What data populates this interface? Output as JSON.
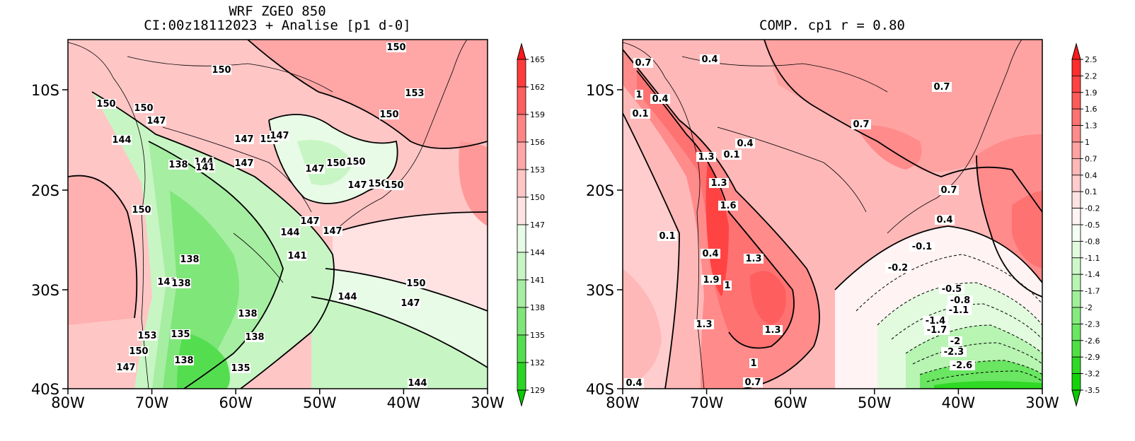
{
  "left_panel": {
    "title_line1": "WRF ZGEO 850",
    "title_line2": "CI:00z18112023 + Analise  [p1 d-0]",
    "y_ticks": [
      "10S",
      "20S",
      "30S",
      "40S"
    ],
    "x_ticks": [
      "80W",
      "70W",
      "60W",
      "50W",
      "40W",
      "30W"
    ],
    "colorbar": {
      "labels": [
        "165",
        "162",
        "159",
        "156",
        "153",
        "150",
        "147",
        "144",
        "141",
        "138",
        "135",
        "132",
        "129"
      ],
      "colors": [
        "#ff1a1a",
        "#ff3b3b",
        "#ff5e5e",
        "#ff8585",
        "#ffa6a6",
        "#ffc6c6",
        "#ffe2e2",
        "#e8fbe6",
        "#c8f5c4",
        "#a6eea1",
        "#7fe67a",
        "#55dd50",
        "#2cd425",
        "#08cc00"
      ]
    },
    "contour_labels": [
      "150",
      "150",
      "153",
      "150",
      "150",
      "147",
      "144",
      "147",
      "150",
      "147",
      "147",
      "150",
      "138",
      "144",
      "141",
      "147",
      "150",
      "147",
      "150",
      "150",
      "150",
      "147",
      "147",
      "144",
      "141",
      "138",
      "141",
      "138",
      "153",
      "135",
      "150",
      "147",
      "138",
      "138",
      "138",
      "135",
      "144",
      "147",
      "144",
      "150",
      "150"
    ]
  },
  "right_panel": {
    "title": "COMP. cp1  r =  0.80",
    "y_ticks": [
      "10S",
      "20S",
      "30S",
      "40S"
    ],
    "x_ticks": [
      "80W",
      "70W",
      "60W",
      "50W",
      "40W",
      "30W"
    ],
    "colorbar": {
      "labels": [
        "2.5",
        "2.2",
        "1.9",
        "1.6",
        "1.3",
        "1",
        "0.7",
        "0.4",
        "0.1",
        "-0.2",
        "-0.5",
        "-0.8",
        "-1.1",
        "-1.4",
        "-1.7",
        "-2",
        "-2.3",
        "-2.6",
        "-2.9",
        "-3.2",
        "-3.5"
      ],
      "colors": [
        "#ff1a1a",
        "#ff2e2e",
        "#ff4343",
        "#ff5a5a",
        "#ff7272",
        "#ff8b8b",
        "#ffa2a2",
        "#ffb8b8",
        "#ffcdcd",
        "#ffe3e3",
        "#fff3f3",
        "#f4fdf3",
        "#e2fbdf",
        "#cef8ca",
        "#b8f4b2",
        "#a0f099",
        "#86eb7e",
        "#6ae662",
        "#4de044",
        "#2fd925",
        "#14d30a",
        "#08cc00"
      ]
    },
    "contour_labels": [
      "0.7",
      "0.4",
      "1",
      "0.4",
      "0.1",
      "0.4",
      "0.1",
      "1.3",
      "1.3",
      "1.6",
      "0.4",
      "0.1",
      "1.3",
      "1.9",
      "1",
      "1.3",
      "1.3",
      "0.7",
      "0.7",
      "0.7",
      "0.4",
      "-0.1",
      "-0.2",
      "-0.5",
      "-0.8",
      "-1.1",
      "-1.4",
      "-1.7",
      "-2",
      "-2.3",
      "-2.6",
      "1",
      "0.7",
      "0.4"
    ]
  }
}
